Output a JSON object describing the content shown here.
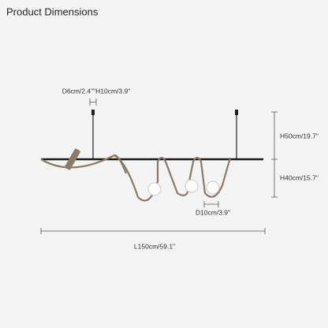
{
  "header": {
    "title": "Product Dimensions"
  },
  "dimensions": {
    "canopy": "D6cm/2.4\"\"H10cm/3.9\"",
    "suspension_height": "H50cm/19.7\"",
    "lamp_height": "H40cm/15.7\"",
    "shade_diameter": "D10cm/3.9\"",
    "length": "L150cm/59.1\""
  }
}
